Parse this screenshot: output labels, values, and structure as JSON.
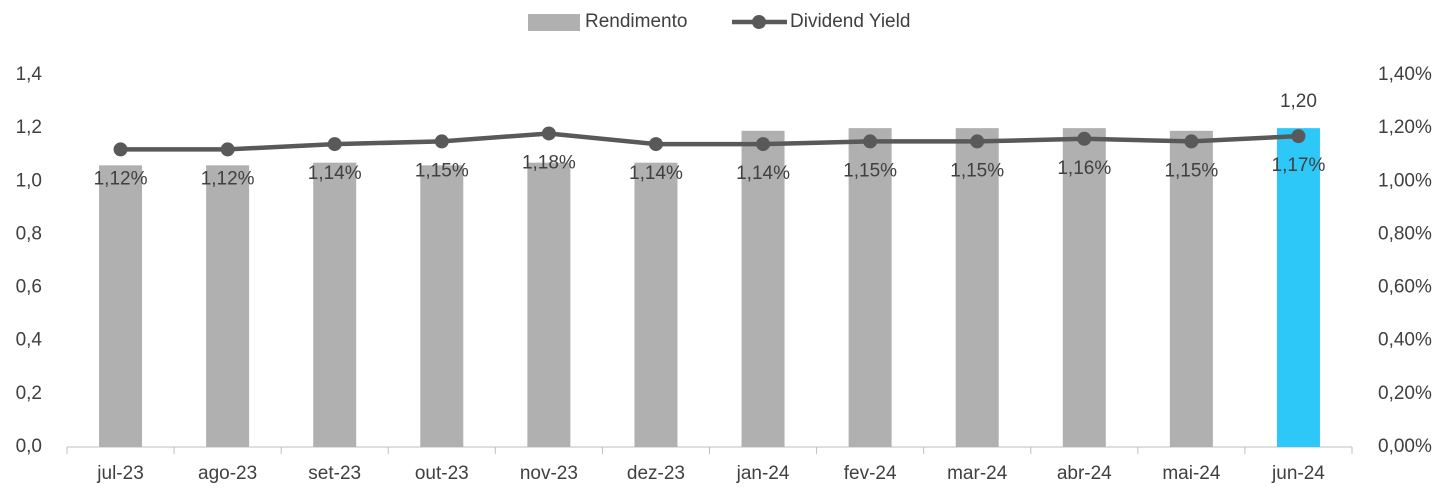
{
  "chart_data": {
    "type": "bar_line",
    "categories": [
      "jul-23",
      "ago-23",
      "set-23",
      "out-23",
      "nov-23",
      "dez-23",
      "jan-24",
      "fev-24",
      "mar-24",
      "abr-24",
      "mai-24",
      "jun-24"
    ],
    "series": [
      {
        "name": "Rendimento",
        "type": "bar",
        "color": "#b0b0b0",
        "colors": [
          "#b0b0b0",
          "#b0b0b0",
          "#b0b0b0",
          "#b0b0b0",
          "#b0b0b0",
          "#b0b0b0",
          "#b0b0b0",
          "#b0b0b0",
          "#b0b0b0",
          "#b0b0b0",
          "#b0b0b0",
          "#2ec8f8"
        ],
        "values": [
          1.06,
          1.06,
          1.07,
          1.06,
          1.07,
          1.07,
          1.19,
          1.2,
          1.2,
          1.2,
          1.19,
          1.2
        ],
        "value_labels": [
          null,
          null,
          null,
          null,
          null,
          null,
          null,
          null,
          null,
          null,
          null,
          "1,20"
        ]
      },
      {
        "name": "Dividend Yield",
        "type": "line",
        "axis": "y2",
        "color": "#595959",
        "values": [
          1.12,
          1.12,
          1.14,
          1.15,
          1.18,
          1.14,
          1.14,
          1.15,
          1.15,
          1.16,
          1.15,
          1.17
        ],
        "value_labels": [
          "1,12%",
          "1,12%",
          "1,14%",
          "1,15%",
          "1,18%",
          "1,14%",
          "1,14%",
          "1,15%",
          "1,15%",
          "1,16%",
          "1,15%",
          "1,17%"
        ]
      }
    ],
    "ylim": [
      0,
      1.4
    ],
    "yticks": [
      {
        "value": 0,
        "label": "0,0"
      },
      {
        "value": 0.2,
        "label": "0,2"
      },
      {
        "value": 0.4,
        "label": "0,4"
      },
      {
        "value": 0.6,
        "label": "0,6"
      },
      {
        "value": 0.8,
        "label": "0,8"
      },
      {
        "value": 1.0,
        "label": "1,0"
      },
      {
        "value": 1.2,
        "label": "1,2"
      },
      {
        "value": 1.4,
        "label": "1,4"
      }
    ],
    "y2lim": [
      0,
      1.4
    ],
    "y2ticks": [
      {
        "value": 0,
        "label": "0,00%"
      },
      {
        "value": 0.2,
        "label": "0,20%"
      },
      {
        "value": 0.4,
        "label": "0,40%"
      },
      {
        "value": 0.6,
        "label": "0,60%"
      },
      {
        "value": 0.8,
        "label": "0,80%"
      },
      {
        "value": 1.0,
        "label": "1,00%"
      },
      {
        "value": 1.2,
        "label": "1,20%"
      },
      {
        "value": 1.4,
        "label": "1,40%"
      }
    ],
    "legend": "top",
    "grid": false
  }
}
